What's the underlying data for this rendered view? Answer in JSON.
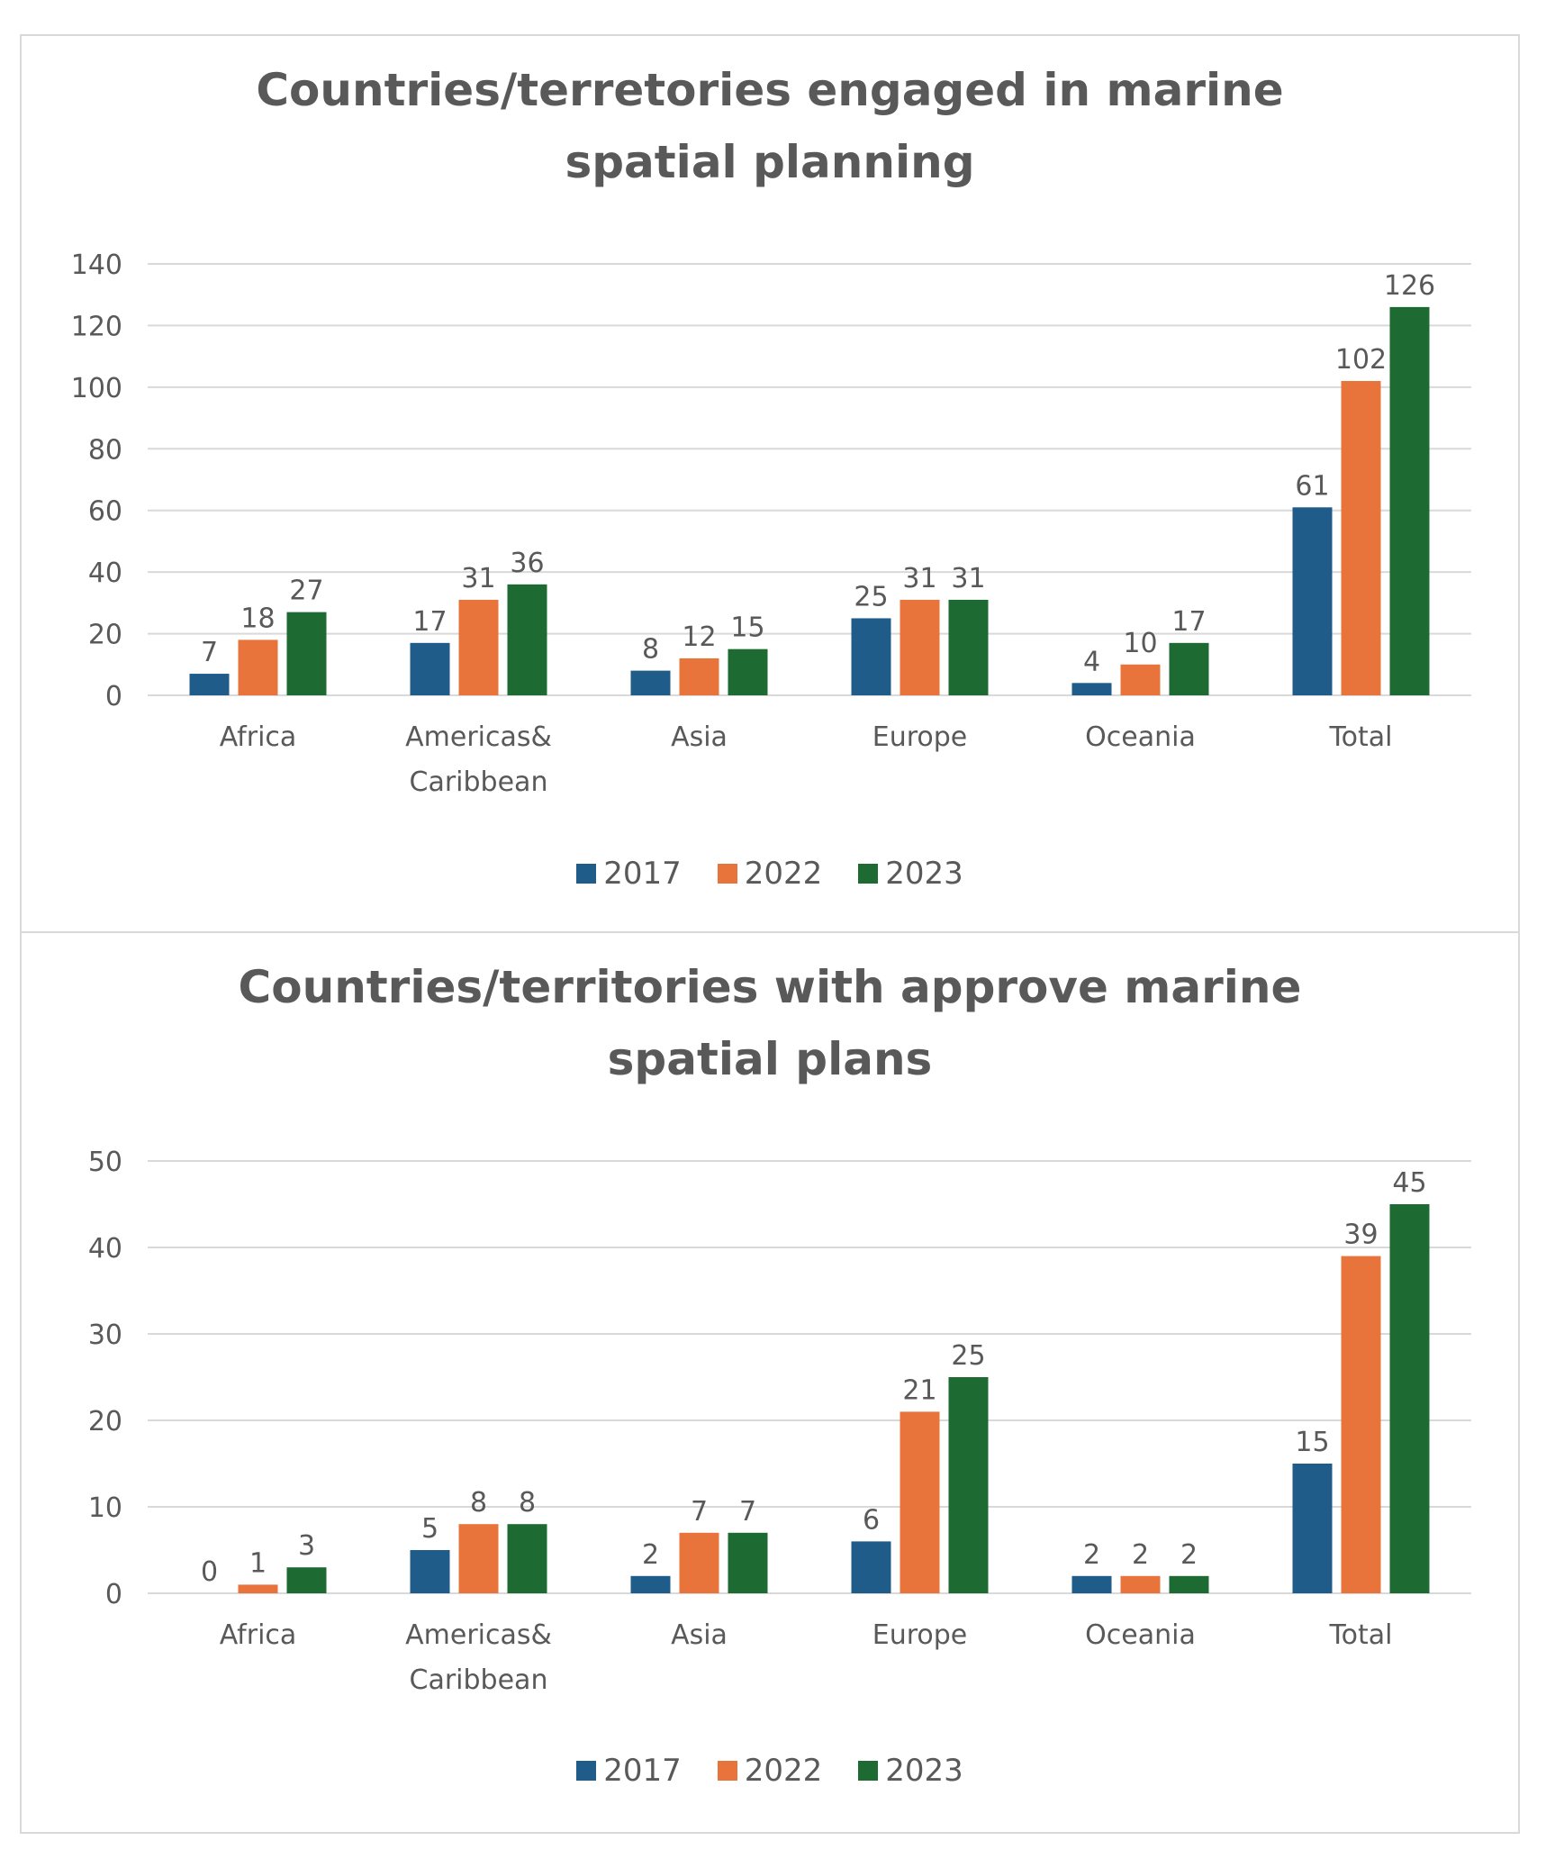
{
  "chart_data": [
    {
      "type": "bar",
      "title": "Countries/terretories engaged in marine spatial planning",
      "categories": [
        "Africa",
        "Americas& Caribbean",
        "Asia",
        "Europe",
        "Oceania",
        "Total"
      ],
      "series": [
        {
          "name": "2017",
          "color": "#1f5c8a",
          "values": [
            7,
            17,
            8,
            25,
            4,
            61
          ]
        },
        {
          "name": "2022",
          "color": "#e8743b",
          "values": [
            18,
            31,
            12,
            31,
            10,
            102
          ]
        },
        {
          "name": "2023",
          "color": "#1d6b32",
          "values": [
            27,
            36,
            15,
            31,
            17,
            126
          ]
        }
      ],
      "yticks": [
        "0",
        "20",
        "40",
        "60",
        "80",
        "100",
        "120",
        "140"
      ],
      "ylim": [
        0,
        140
      ],
      "grid": true,
      "legend": "bottom"
    },
    {
      "type": "bar",
      "title": "Countries/territories with approve marine spatial plans",
      "categories": [
        "Africa",
        "Americas& Caribbean",
        "Asia",
        "Europe",
        "Oceania",
        "Total"
      ],
      "series": [
        {
          "name": "2017",
          "color": "#1f5c8a",
          "values": [
            0,
            5,
            2,
            6,
            2,
            15
          ]
        },
        {
          "name": "2022",
          "color": "#e8743b",
          "values": [
            1,
            8,
            7,
            21,
            2,
            39
          ]
        },
        {
          "name": "2023",
          "color": "#1d6b32",
          "values": [
            3,
            8,
            7,
            25,
            2,
            45
          ]
        }
      ],
      "yticks": [
        "0",
        "10",
        "20",
        "30",
        "40",
        "50"
      ],
      "ylim": [
        0,
        50
      ],
      "grid": true,
      "legend": "bottom"
    }
  ]
}
